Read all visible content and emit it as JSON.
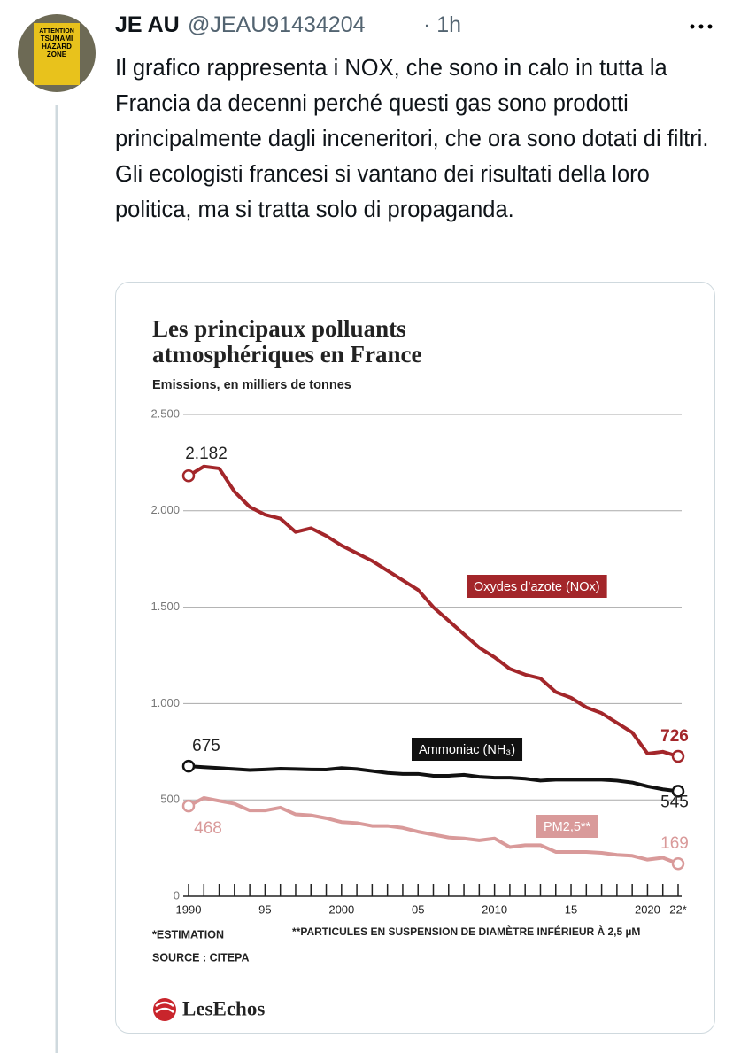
{
  "tweet": {
    "author_name": "JE AU",
    "handle": "@JEAU91434204",
    "time": "· 1h",
    "text": "Il grafico rappresenta i NOX, che sono in calo in tutta la Francia da decenni perché questi gas sono prodotti principalmente dagli inceneritori, che ora sono dotati di filtri. Gli ecologisti francesi si vantano dei risultati della loro politica, ma si tratta solo di propaganda.",
    "avatar_text": [
      "ATTENTION",
      "TSUNAMI",
      "HAZARD",
      "ZONE"
    ]
  },
  "chart_data": {
    "type": "line",
    "title": "Les principaux polluants atmosphériques en France",
    "subtitle": "Emissions, en milliers de tonnes",
    "x": [
      1990,
      1991,
      1992,
      1993,
      1994,
      1995,
      1996,
      1997,
      1998,
      1999,
      2000,
      2001,
      2002,
      2003,
      2004,
      2005,
      2006,
      2007,
      2008,
      2009,
      2010,
      2011,
      2012,
      2013,
      2014,
      2015,
      2016,
      2017,
      2018,
      2019,
      2020,
      2021,
      2022
    ],
    "xlim": [
      1990,
      2022
    ],
    "xticks": [
      1990,
      {
        "value": 1995,
        "label": "95"
      },
      2000,
      {
        "value": 2005,
        "label": "05"
      },
      2010,
      {
        "value": 2015,
        "label": "15"
      },
      2020,
      {
        "value": 2022,
        "label": "22*"
      }
    ],
    "ylim": [
      0,
      2500
    ],
    "yticks": [
      0,
      500,
      {
        "value": 1000,
        "label": "1.000"
      },
      {
        "value": 1500,
        "label": "1.500"
      },
      {
        "value": 2000,
        "label": "2.000"
      },
      {
        "value": 2500,
        "label": "2.500"
      }
    ],
    "grid": true,
    "series": [
      {
        "name": "Oxydes d’azote (NOx)",
        "color": "#a3262a",
        "values": [
          2182,
          2230,
          2220,
          2100,
          2020,
          1980,
          1960,
          1890,
          1910,
          1870,
          1820,
          1780,
          1740,
          1690,
          1640,
          1590,
          1500,
          1430,
          1360,
          1290,
          1240,
          1180,
          1150,
          1130,
          1060,
          1030,
          980,
          950,
          900,
          850,
          740,
          750,
          726
        ],
        "value_labels": [
          "2.182",
          null,
          null,
          null,
          null,
          null,
          null,
          null,
          null,
          null,
          null,
          null,
          null,
          null,
          null,
          null,
          null,
          null,
          null,
          null,
          null,
          null,
          null,
          null,
          null,
          null,
          null,
          null,
          null,
          null,
          null,
          null,
          "726"
        ]
      },
      {
        "name": "Ammoniac (NH₃)",
        "color": "#111111",
        "values": [
          675,
          670,
          665,
          660,
          655,
          658,
          662,
          660,
          658,
          657,
          665,
          660,
          650,
          640,
          635,
          635,
          625,
          625,
          630,
          620,
          615,
          615,
          610,
          600,
          605,
          605,
          605,
          605,
          600,
          590,
          570,
          555,
          545
        ],
        "value_labels": [
          "675",
          null,
          null,
          null,
          null,
          null,
          null,
          null,
          null,
          null,
          null,
          null,
          null,
          null,
          null,
          null,
          null,
          null,
          null,
          null,
          null,
          null,
          null,
          null,
          null,
          null,
          null,
          null,
          null,
          null,
          null,
          null,
          "545"
        ]
      },
      {
        "name": "PM2,5**",
        "color": "#d99a9a",
        "values": [
          468,
          510,
          495,
          480,
          445,
          445,
          460,
          425,
          420,
          405,
          385,
          380,
          365,
          365,
          355,
          335,
          320,
          305,
          300,
          290,
          300,
          255,
          265,
          265,
          230,
          230,
          230,
          225,
          215,
          210,
          190,
          200,
          169
        ],
        "value_labels": [
          "468",
          null,
          null,
          null,
          null,
          null,
          null,
          null,
          null,
          null,
          null,
          null,
          null,
          null,
          null,
          null,
          null,
          null,
          null,
          null,
          null,
          null,
          null,
          null,
          null,
          null,
          null,
          null,
          null,
          null,
          null,
          null,
          "169"
        ]
      }
    ],
    "notes": [
      "*ESTIMATION",
      "**PARTICULES EN SUSPENSION DE DIAMÈTRE INFÉRIEUR À 2,5 µM",
      "SOURCE : CITEPA"
    ],
    "source_logo": "LesEchos"
  }
}
